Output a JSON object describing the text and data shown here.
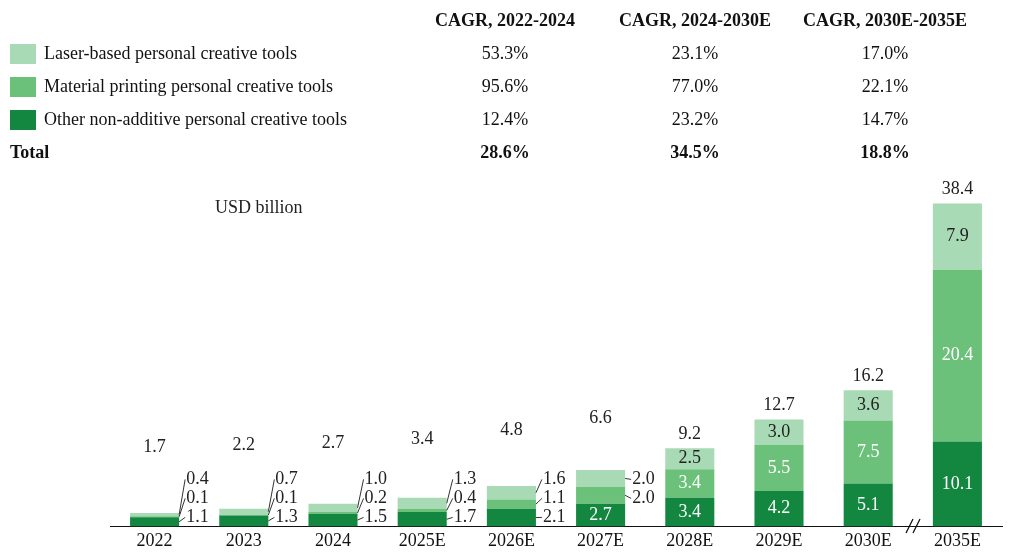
{
  "chart_data": {
    "type": "bar",
    "stacked": true,
    "ylabel": "USD billion",
    "legend": "top left",
    "grid": false,
    "categories": [
      "2022",
      "2023",
      "2024",
      "2025E",
      "2026E",
      "2027E",
      "2028E",
      "2029E",
      "2030E",
      "2035E"
    ],
    "series": [
      {
        "name": "Other non-additive personal creative tools",
        "color": "#13873f",
        "values": [
          1.1,
          1.3,
          1.5,
          1.7,
          2.1,
          2.7,
          3.4,
          4.2,
          5.1,
          10.1
        ],
        "value_labels": [
          "1.1",
          "1.3",
          "1.5",
          "1.7",
          "2.1",
          "2.7",
          "3.4",
          "4.2",
          "5.1",
          "10.1"
        ]
      },
      {
        "name": "Material printing personal creative tools",
        "color": "#6cc17a",
        "values": [
          0.1,
          0.1,
          0.2,
          0.4,
          1.1,
          2.0,
          3.4,
          5.5,
          7.5,
          20.4
        ],
        "value_labels": [
          "0.1",
          "0.1",
          "0.2",
          "0.4",
          "1.1",
          "2.0",
          "3.4",
          "5.5",
          "7.5",
          "20.4"
        ]
      },
      {
        "name": "Laser-based personal creative tools",
        "color": "#a8dab5",
        "values": [
          0.4,
          0.7,
          1.0,
          1.3,
          1.6,
          2.0,
          2.5,
          3.0,
          3.6,
          7.9
        ],
        "value_labels": [
          "0.4",
          "0.7",
          "1.0",
          "1.3",
          "1.6",
          "2.0",
          "2.5",
          "3.0",
          "3.6",
          "7.9"
        ]
      }
    ],
    "totals": [
      "1.7",
      "2.2",
      "2.7",
      "3.4",
      "4.8",
      "6.6",
      "9.2",
      "12.7",
      "16.2",
      "38.4"
    ],
    "annotations": [
      "CAGR, 2022-2024",
      "CAGR, 2024-2030E",
      "CAGR, 2030E-2035E",
      "53.3%",
      "23.1%",
      "17.0%",
      "95.6%",
      "77.0%",
      "22.1%",
      "12.4%",
      "23.2%",
      "14.7%",
      "Total",
      "28.6%",
      "34.5%",
      "18.8%"
    ]
  }
}
